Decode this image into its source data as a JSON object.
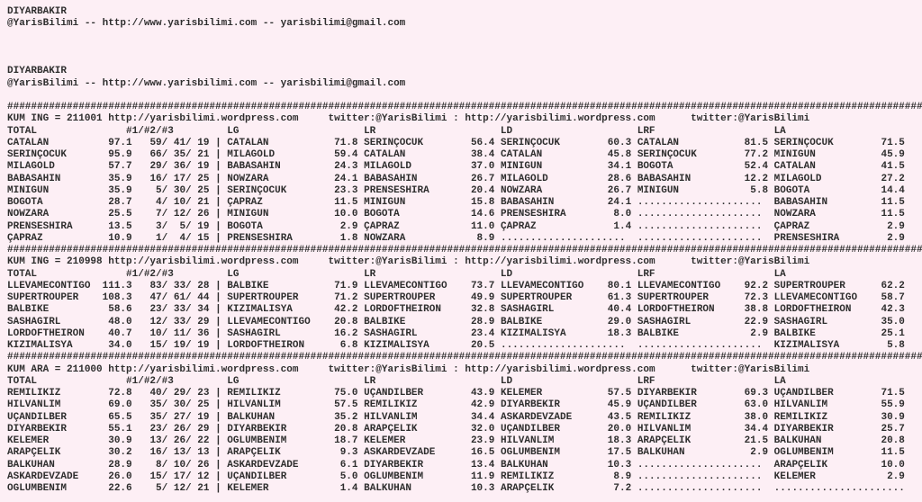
{
  "colors": {
    "background": "#fdeff5",
    "text": "#2e2e2e"
  },
  "separator_char": "#",
  "intro": {
    "title": "DIYARBAKIR",
    "contact": "@YarisBilimi -- http://www.yarisbilimi.com -- yarisbilimi@gmail.com"
  },
  "columns": {
    "total": "TOTAL",
    "placings": "#1/#2/#3",
    "ranked": [
      "LG",
      "LR",
      "LD",
      "LRF",
      "LA"
    ]
  },
  "sections": [
    {
      "surface": "KUM ING",
      "race_id": "211001",
      "wordpress_url": "http://yarisbilimi.wordpress.com",
      "twitter": "twitter:@YarisBilimi",
      "rows": [
        {
          "horse": "CATALAN",
          "total": "97.1",
          "placings": [
            59,
            41,
            19
          ],
          "lg": {
            "horse": "CATALAN",
            "value": "71.8"
          },
          "lr": {
            "horse": "SERINÇOCUK",
            "value": "56.4"
          },
          "ld": {
            "horse": "SERINÇOCUK",
            "value": "60.3"
          },
          "lrf": {
            "horse": "CATALAN",
            "value": "81.5"
          },
          "la": {
            "horse": "SERINÇOCUK",
            "value": "71.5"
          }
        },
        {
          "horse": "SERINÇOCUK",
          "total": "95.9",
          "placings": [
            66,
            35,
            21
          ],
          "lg": {
            "horse": "MILAGOLD",
            "value": "59.4"
          },
          "lr": {
            "horse": "CATALAN",
            "value": "38.4"
          },
          "ld": {
            "horse": "CATALAN",
            "value": "45.8"
          },
          "lrf": {
            "horse": "SERINÇOCUK",
            "value": "77.2"
          },
          "la": {
            "horse": "MINIGUN",
            "value": "45.9"
          }
        },
        {
          "horse": "MILAGOLD",
          "total": "57.7",
          "placings": [
            29,
            36,
            19
          ],
          "lg": {
            "horse": "BABASAHIN",
            "value": "24.3"
          },
          "lr": {
            "horse": "MILAGOLD",
            "value": "37.0"
          },
          "ld": {
            "horse": "MINIGUN",
            "value": "34.1"
          },
          "lrf": {
            "horse": "BOGOTA",
            "value": "52.4"
          },
          "la": {
            "horse": "CATALAN",
            "value": "41.5"
          }
        },
        {
          "horse": "BABASAHIN",
          "total": "35.9",
          "placings": [
            16,
            17,
            25
          ],
          "lg": {
            "horse": "NOWZARA",
            "value": "24.1"
          },
          "lr": {
            "horse": "BABASAHIN",
            "value": "26.7"
          },
          "ld": {
            "horse": "MILAGOLD",
            "value": "28.6"
          },
          "lrf": {
            "horse": "BABASAHIN",
            "value": "12.2"
          },
          "la": {
            "horse": "MILAGOLD",
            "value": "27.2"
          }
        },
        {
          "horse": "MINIGUN",
          "total": "35.9",
          "placings": [
            5,
            30,
            25
          ],
          "lg": {
            "horse": "SERINÇOCUK",
            "value": "23.3"
          },
          "lr": {
            "horse": "PRENSESHIRA",
            "value": "20.4"
          },
          "ld": {
            "horse": "NOWZARA",
            "value": "26.7"
          },
          "lrf": {
            "horse": "MINIGUN",
            "value": "5.8"
          },
          "la": {
            "horse": "BOGOTA",
            "value": "14.4"
          }
        },
        {
          "horse": "BOGOTA",
          "total": "28.7",
          "placings": [
            4,
            10,
            21
          ],
          "lg": {
            "horse": "ÇAPRAZ",
            "value": "11.5"
          },
          "lr": {
            "horse": "MINIGUN",
            "value": "15.8"
          },
          "ld": {
            "horse": "BABASAHIN",
            "value": "24.1"
          },
          "lrf": null,
          "la": {
            "horse": "BABASAHIN",
            "value": "11.5"
          }
        },
        {
          "horse": "NOWZARA",
          "total": "25.5",
          "placings": [
            7,
            12,
            26
          ],
          "lg": {
            "horse": "MINIGUN",
            "value": "10.0"
          },
          "lr": {
            "horse": "BOGOTA",
            "value": "14.6"
          },
          "ld": {
            "horse": "PRENSESHIRA",
            "value": "8.0"
          },
          "lrf": null,
          "la": {
            "horse": "NOWZARA",
            "value": "11.5"
          }
        },
        {
          "horse": "PRENSESHIRA",
          "total": "13.5",
          "placings": [
            3,
            5,
            19
          ],
          "lg": {
            "horse": "BOGOTA",
            "value": "2.9"
          },
          "lr": {
            "horse": "ÇAPRAZ",
            "value": "11.0"
          },
          "ld": {
            "horse": "ÇAPRAZ",
            "value": "1.4"
          },
          "lrf": null,
          "la": {
            "horse": "ÇAPRAZ",
            "value": "2.9"
          }
        },
        {
          "horse": "ÇAPRAZ",
          "total": "10.9",
          "placings": [
            1,
            4,
            15
          ],
          "lg": {
            "horse": "PRENSESHIRA",
            "value": "1.8"
          },
          "lr": {
            "horse": "NOWZARA",
            "value": "8.9"
          },
          "ld": null,
          "lrf": null,
          "la": {
            "horse": "PRENSESHIRA",
            "value": "2.9"
          }
        }
      ]
    },
    {
      "surface": "KUM ING",
      "race_id": "210998",
      "wordpress_url": "http://yarisbilimi.wordpress.com",
      "twitter": "twitter:@YarisBilimi",
      "rows": [
        {
          "horse": "LLEVAMECONTIGO",
          "total": "111.3",
          "placings": [
            83,
            33,
            28
          ],
          "lg": {
            "horse": "BALBIKE",
            "value": "71.9"
          },
          "lr": {
            "horse": "LLEVAMECONTIGO",
            "value": "73.7"
          },
          "ld": {
            "horse": "LLEVAMECONTIGO",
            "value": "80.1"
          },
          "lrf": {
            "horse": "LLEVAMECONTIGO",
            "value": "92.2"
          },
          "la": {
            "horse": "SUPERTROUPER",
            "value": "62.2"
          }
        },
        {
          "horse": "SUPERTROUPER",
          "total": "108.3",
          "placings": [
            47,
            61,
            44
          ],
          "lg": {
            "horse": "SUPERTROUPER",
            "value": "71.2"
          },
          "lr": {
            "horse": "SUPERTROUPER",
            "value": "49.9"
          },
          "ld": {
            "horse": "SUPERTROUPER",
            "value": "61.3"
          },
          "lrf": {
            "horse": "SUPERTROUPER",
            "value": "72.3"
          },
          "la": {
            "horse": "LLEVAMECONTIGO",
            "value": "58.7"
          }
        },
        {
          "horse": "BALBIKE",
          "total": "58.6",
          "placings": [
            23,
            33,
            34
          ],
          "lg": {
            "horse": "KIZIMALISYA",
            "value": "42.2"
          },
          "lr": {
            "horse": "LORDOFTHEIRON",
            "value": "32.8"
          },
          "ld": {
            "horse": "SASHAGIRL",
            "value": "40.4"
          },
          "lrf": {
            "horse": "LORDOFTHEIRON",
            "value": "38.8"
          },
          "la": {
            "horse": "LORDOFTHEIRON",
            "value": "42.3"
          }
        },
        {
          "horse": "SASHAGIRL",
          "total": "48.0",
          "placings": [
            12,
            33,
            29
          ],
          "lg": {
            "horse": "LLEVAMECONTIGO",
            "value": "20.8"
          },
          "lr": {
            "horse": "BALBIKE",
            "value": "28.9"
          },
          "ld": {
            "horse": "BALBIKE",
            "value": "29.0"
          },
          "lrf": {
            "horse": "SASHAGIRL",
            "value": "22.9"
          },
          "la": {
            "horse": "SASHAGIRL",
            "value": "35.0"
          }
        },
        {
          "horse": "LORDOFTHEIRON",
          "total": "40.7",
          "placings": [
            10,
            11,
            36
          ],
          "lg": {
            "horse": "SASHAGIRL",
            "value": "16.2"
          },
          "lr": {
            "horse": "SASHAGIRL",
            "value": "23.4"
          },
          "ld": {
            "horse": "KIZIMALISYA",
            "value": "18.3"
          },
          "lrf": {
            "horse": "BALBIKE",
            "value": "2.9"
          },
          "la": {
            "horse": "BALBIKE",
            "value": "25.1"
          }
        },
        {
          "horse": "KIZIMALISYA",
          "total": "34.0",
          "placings": [
            15,
            19,
            19
          ],
          "lg": {
            "horse": "LORDOFTHEIRON",
            "value": "6.8"
          },
          "lr": {
            "horse": "KIZIMALISYA",
            "value": "20.5"
          },
          "ld": null,
          "lrf": null,
          "la": {
            "horse": "KIZIMALISYA",
            "value": "5.8"
          }
        }
      ]
    },
    {
      "surface": "KUM ARA",
      "race_id": "211000",
      "wordpress_url": "http://yarisbilimi.wordpress.com",
      "twitter": "twitter:@YarisBilimi",
      "rows": [
        {
          "horse": "REMILIKIZ",
          "total": "72.8",
          "placings": [
            40,
            29,
            23
          ],
          "lg": {
            "horse": "REMILIKIZ",
            "value": "75.0"
          },
          "lr": {
            "horse": "UÇANDILBER",
            "value": "43.9"
          },
          "ld": {
            "horse": "KELEMER",
            "value": "57.5"
          },
          "lrf": {
            "horse": "DIYARBEKIR",
            "value": "69.3"
          },
          "la": {
            "horse": "UÇANDILBER",
            "value": "71.5"
          }
        },
        {
          "horse": "HILVANLIM",
          "total": "69.0",
          "placings": [
            35,
            30,
            25
          ],
          "lg": {
            "horse": "HILVANLIM",
            "value": "57.5"
          },
          "lr": {
            "horse": "REMILIKIZ",
            "value": "42.9"
          },
          "ld": {
            "horse": "DIYARBEKIR",
            "value": "45.9"
          },
          "lrf": {
            "horse": "UÇANDILBER",
            "value": "63.0"
          },
          "la": {
            "horse": "HILVANLIM",
            "value": "55.9"
          }
        },
        {
          "horse": "UÇANDILBER",
          "total": "65.5",
          "placings": [
            35,
            27,
            19
          ],
          "lg": {
            "horse": "BALKUHAN",
            "value": "35.2"
          },
          "lr": {
            "horse": "HILVANLIM",
            "value": "34.4"
          },
          "ld": {
            "horse": "ASKARDEVZADE",
            "value": "43.5"
          },
          "lrf": {
            "horse": "REMILIKIZ",
            "value": "38.0"
          },
          "la": {
            "horse": "REMILIKIZ",
            "value": "30.9"
          }
        },
        {
          "horse": "DIYARBEKIR",
          "total": "55.1",
          "placings": [
            23,
            26,
            29
          ],
          "lg": {
            "horse": "DIYARBEKIR",
            "value": "20.8"
          },
          "lr": {
            "horse": "ARAPÇELIK",
            "value": "32.0"
          },
          "ld": {
            "horse": "UÇANDILBER",
            "value": "20.0"
          },
          "lrf": {
            "horse": "HILVANLIM",
            "value": "34.4"
          },
          "la": {
            "horse": "DIYARBEKIR",
            "value": "25.7"
          }
        },
        {
          "horse": "KELEMER",
          "total": "30.9",
          "placings": [
            13,
            26,
            22
          ],
          "lg": {
            "horse": "OGLUMBENIM",
            "value": "18.7"
          },
          "lr": {
            "horse": "KELEMER",
            "value": "23.9"
          },
          "ld": {
            "horse": "HILVANLIM",
            "value": "18.3"
          },
          "lrf": {
            "horse": "ARAPÇELIK",
            "value": "21.5"
          },
          "la": {
            "horse": "BALKUHAN",
            "value": "20.8"
          }
        },
        {
          "horse": "ARAPÇELIK",
          "total": "30.2",
          "placings": [
            16,
            13,
            13
          ],
          "lg": {
            "horse": "ARAPÇELIK",
            "value": "9.3"
          },
          "lr": {
            "horse": "ASKARDEVZADE",
            "value": "16.5"
          },
          "ld": {
            "horse": "OGLUMBENIM",
            "value": "17.5"
          },
          "lrf": {
            "horse": "BALKUHAN",
            "value": "2.9"
          },
          "la": {
            "horse": "OGLUMBENIM",
            "value": "11.5"
          }
        },
        {
          "horse": "BALKUHAN",
          "total": "28.9",
          "placings": [
            8,
            10,
            26
          ],
          "lg": {
            "horse": "ASKARDEVZADE",
            "value": "6.1"
          },
          "lr": {
            "horse": "DIYARBEKIR",
            "value": "13.4"
          },
          "ld": {
            "horse": "BALKUHAN",
            "value": "10.3"
          },
          "lrf": null,
          "la": {
            "horse": "ARAPÇELIK",
            "value": "10.0"
          }
        },
        {
          "horse": "ASKARDEVZADE",
          "total": "26.0",
          "placings": [
            15,
            17,
            12
          ],
          "lg": {
            "horse": "UÇANDILBER",
            "value": "5.0"
          },
          "lr": {
            "horse": "OGLUMBENIM",
            "value": "11.9"
          },
          "ld": {
            "horse": "REMILIKIZ",
            "value": "8.9"
          },
          "lrf": null,
          "la": {
            "horse": "KELEMER",
            "value": "2.9"
          }
        },
        {
          "horse": "OGLUMBENIM",
          "total": "22.6",
          "placings": [
            5,
            12,
            21
          ],
          "lg": {
            "horse": "KELEMER",
            "value": "1.4"
          },
          "lr": {
            "horse": "BALKUHAN",
            "value": "10.3"
          },
          "ld": {
            "horse": "ARAPÇELIK",
            "value": "7.2"
          },
          "lrf": null,
          "la": null
        }
      ]
    }
  ]
}
